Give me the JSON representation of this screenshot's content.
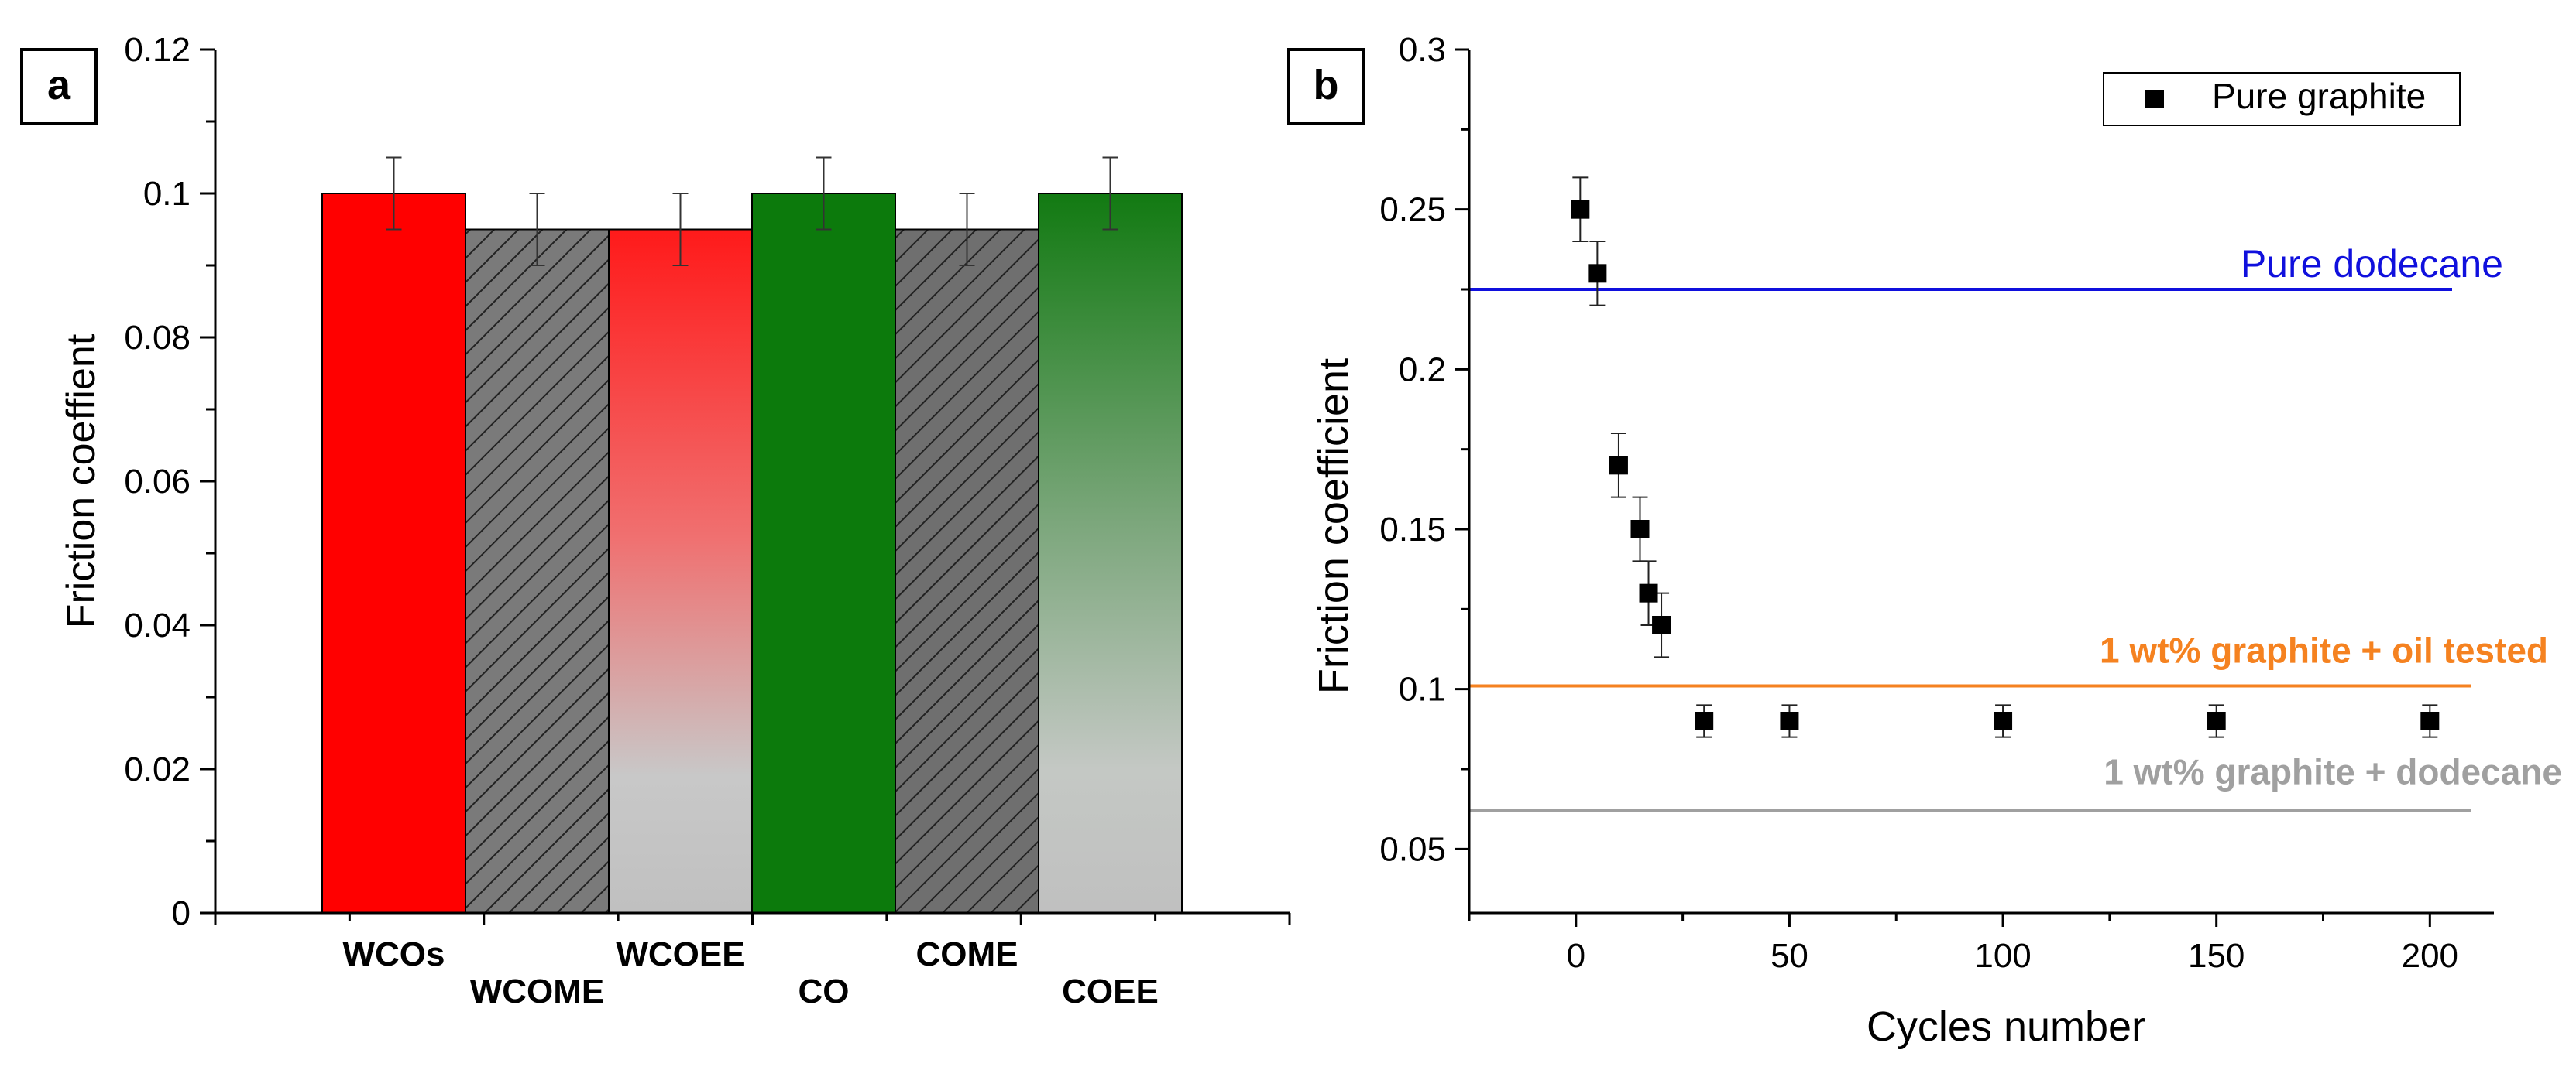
{
  "chart_data": [
    {
      "type": "bar",
      "panel_label": "a",
      "title": "",
      "xlabel": "",
      "ylabel": "Friction coeffient",
      "ylim": [
        0,
        0.12
      ],
      "yticks": [
        "0",
        "0.02",
        "0.04",
        "0.06",
        "0.08",
        "0.1",
        "0.12"
      ],
      "grid": false,
      "categories": [
        "WCOs",
        "WCOME",
        "WCOEE",
        "CO",
        "COME",
        "COEE"
      ],
      "values": [
        0.1,
        0.095,
        0.095,
        0.1,
        0.095,
        0.1
      ],
      "errors": [
        0.005,
        0.005,
        0.005,
        0.005,
        0.005,
        0.005
      ],
      "bar_styles": [
        "solid",
        "hatched",
        "gradient",
        "solid",
        "hatched",
        "gradient"
      ],
      "colors": {
        "group1": "#ff0000",
        "group2": "#0c7a0c"
      }
    },
    {
      "type": "scatter",
      "panel_label": "b",
      "title": "",
      "xlabel": "Cycles number",
      "ylabel": "Friction coefficient",
      "xlim": [
        -25,
        215
      ],
      "ylim": [
        0.03,
        0.3
      ],
      "xticks": [
        "0",
        "50",
        "100",
        "150",
        "200"
      ],
      "yticks": [
        "0.05",
        "0.1",
        "0.15",
        "0.2",
        "0.25",
        "0.3"
      ],
      "grid": false,
      "legend": {
        "position": "top-right",
        "entries": [
          "Pure graphite"
        ]
      },
      "series": [
        {
          "name": "Pure graphite",
          "x": [
            1,
            5,
            10,
            15,
            17,
            20,
            30,
            50,
            100,
            150,
            200
          ],
          "y": [
            0.25,
            0.23,
            0.17,
            0.15,
            0.13,
            0.12,
            0.09,
            0.09,
            0.09,
            0.09,
            0.09
          ],
          "errors": [
            0.01,
            0.01,
            0.01,
            0.01,
            0.01,
            0.01,
            0.005,
            0.005,
            0.005,
            0.005,
            0.005
          ]
        }
      ],
      "reference_lines": [
        {
          "name": "Pure dodecane",
          "y": 0.225,
          "color": "#1010dd",
          "label_weight": "normal"
        },
        {
          "name": "1 wt% graphite + oil tested",
          "y": 0.101,
          "color": "#f58220",
          "label_weight": "bold"
        },
        {
          "name": "1 wt% graphite + dodecane",
          "y": 0.062,
          "color": "#a0a0a0",
          "label_weight": "bold"
        }
      ]
    }
  ]
}
